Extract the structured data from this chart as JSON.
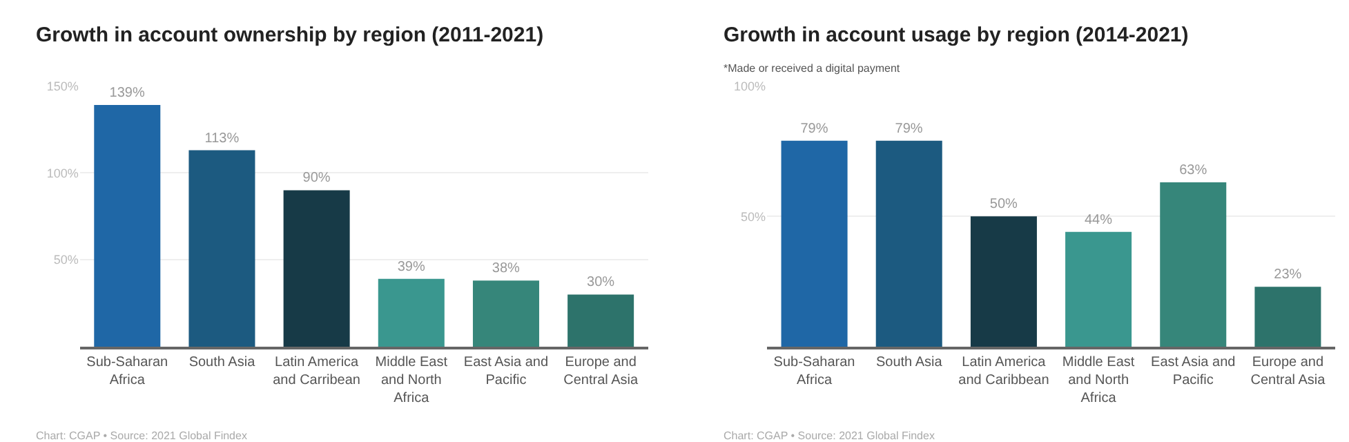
{
  "chart_data": [
    {
      "type": "bar",
      "title": "Growth in account ownership by region (2011-2021)",
      "categories": [
        "Sub-Saharan Africa",
        "South Asia",
        "Latin America and Carribean",
        "Middle East and North Africa",
        "East Asia and Pacific",
        "Europe and Central Asia"
      ],
      "values": [
        139,
        113,
        90,
        39,
        38,
        30
      ],
      "value_labels": [
        "139%",
        "113%",
        "90%",
        "39%",
        "38%",
        "30%"
      ],
      "colors": [
        "#1f67a6",
        "#1c5a80",
        "#173a47",
        "#3a978f",
        "#36867a",
        "#2d736b"
      ],
      "ylim": [
        0,
        150
      ],
      "yticks": [
        {
          "value": 50,
          "label": "50%"
        },
        {
          "value": 100,
          "label": "100%"
        },
        {
          "value": 150,
          "label": "150%"
        }
      ],
      "grid": "y",
      "legend": false,
      "annotations": [
        "Chart: CGAP • Source: 2021 Global Findex"
      ]
    },
    {
      "type": "bar",
      "title": "Growth in account usage by region (2014-2021)",
      "subtitle": "*Made or received a digital payment",
      "categories": [
        "Sub-Saharan Africa",
        "South Asia",
        "Latin America and Caribbean",
        "Middle East and North Africa",
        "East Asia and Pacific",
        "Europe and Central Asia"
      ],
      "values": [
        79,
        79,
        50,
        44,
        63,
        23
      ],
      "value_labels": [
        "79%",
        "79%",
        "50%",
        "44%",
        "63%",
        "23%"
      ],
      "colors": [
        "#1f67a6",
        "#1c5a80",
        "#173a47",
        "#3a978f",
        "#36867a",
        "#2d736b"
      ],
      "ylim": [
        0,
        100
      ],
      "yticks": [
        {
          "value": 50,
          "label": "50%"
        },
        {
          "value": 100,
          "label": "100%"
        }
      ],
      "grid": "y",
      "legend": false,
      "annotations": [
        "Chart: CGAP • Source: 2021 Global Findex"
      ]
    }
  ]
}
